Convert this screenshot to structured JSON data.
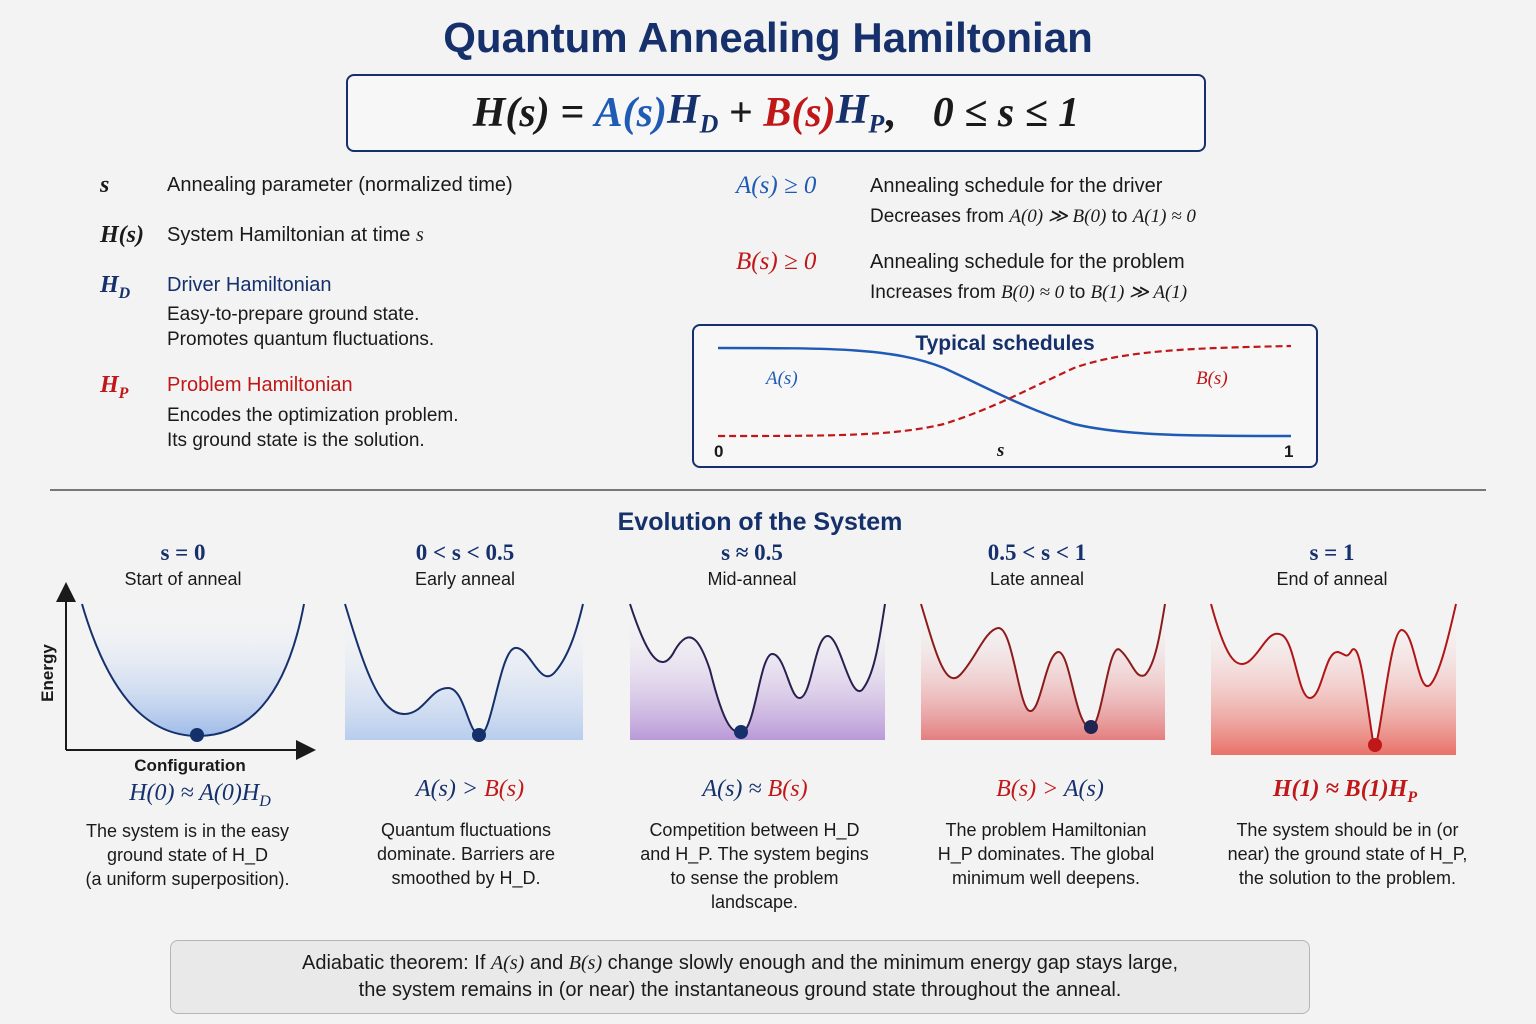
{
  "title": "Quantum Annealing Hamiltonian",
  "formula": {
    "lhs": "H(s) =",
    "a": "A(s)",
    "hd": "H",
    "hd_sub": "D",
    "plus": "+",
    "b": "B(s)",
    "hp": "H",
    "hp_sub": "P",
    "comma": ",",
    "range": "0 ≤ s ≤ 1"
  },
  "definitions": {
    "s": {
      "symbol": "s",
      "title": "Annealing parameter (normalized time)"
    },
    "h": {
      "symbol": "H(s)",
      "title_pre": "System Hamiltonian at time ",
      "title_var": "s"
    },
    "hd": {
      "symbol": "H",
      "sub": "D",
      "title": "Driver Hamiltonian",
      "desc1": "Easy-to-prepare ground state.",
      "desc2": "Promotes quantum fluctuations."
    },
    "hp": {
      "symbol": "H",
      "sub": "P",
      "title": "Problem Hamiltonian",
      "desc1": "Encodes the optimization problem.",
      "desc2": "Its ground state is the solution."
    },
    "a": {
      "symbol": "A(s) ≥ 0",
      "title": "Annealing schedule for the driver",
      "desc_pre": "Decreases from ",
      "desc_m1": "A(0) ≫ B(0)",
      "desc_mid": " to ",
      "desc_m2": "A(1) ≈ 0"
    },
    "b": {
      "symbol": "B(s) ≥ 0",
      "title": "Annealing schedule for the problem",
      "desc_pre": "Increases from ",
      "desc_m1": "B(0) ≈ 0",
      "desc_mid": " to ",
      "desc_m2": "B(1) ≫ A(1)"
    }
  },
  "schedules": {
    "title": "Typical schedules",
    "a_label": "A(s)",
    "b_label": "B(s)",
    "x_start": "0",
    "x_mid": "s",
    "x_end": "1"
  },
  "evolution": {
    "title": "Evolution of the System",
    "energy_label": "Energy",
    "config_label": "Configuration",
    "stages": [
      {
        "range": "s = 0",
        "name": "Start of anneal",
        "formula_pre": "H(0) ≈ A(0)H",
        "formula_sub": "D",
        "desc": [
          "The system is in the easy",
          "ground state of H_D",
          "(a uniform superposition)."
        ]
      },
      {
        "range": "0 < s < 0.5",
        "name": "Early anneal",
        "formula_a": "A(s)",
        "formula_op": " > ",
        "formula_b": "B(s)",
        "desc": [
          "Quantum fluctuations",
          "dominate. Barriers are",
          "smoothed by H_D."
        ]
      },
      {
        "range": "s ≈ 0.5",
        "name": "Mid-anneal",
        "formula_a": "A(s)",
        "formula_op": " ≈ ",
        "formula_b": "B(s)",
        "desc": [
          "Competition between H_D",
          "and H_P. The system begins",
          "to sense the problem",
          "landscape."
        ]
      },
      {
        "range": "0.5 < s < 1",
        "name": "Late anneal",
        "formula_a": "B(s)",
        "formula_op": " > ",
        "formula_b": "A(s)",
        "desc": [
          "The problem Hamiltonian",
          "H_P dominates. The global",
          "minimum well deepens."
        ]
      },
      {
        "range": "s = 1",
        "name": "End of anneal",
        "formula_pre": "H(1) ≈ B(1)H",
        "formula_sub": "P",
        "desc": [
          "The system should be in (or",
          "near) the ground state of H_P,",
          "the solution to the problem."
        ]
      }
    ]
  },
  "adiabatic": {
    "line1_pre": "Adiabatic theorem: If ",
    "line1_a": "A(s)",
    "line1_and": " and ",
    "line1_b": "B(s)",
    "line1_post": " change slowly enough and the minimum energy gap stays large,",
    "line2": "the system remains in (or near) the instantaneous ground state throughout the anneal."
  },
  "colors": {
    "navy": "#15306b",
    "blue": "#1f5bb5",
    "red": "#c01818",
    "purple": "#7a3fa8"
  }
}
